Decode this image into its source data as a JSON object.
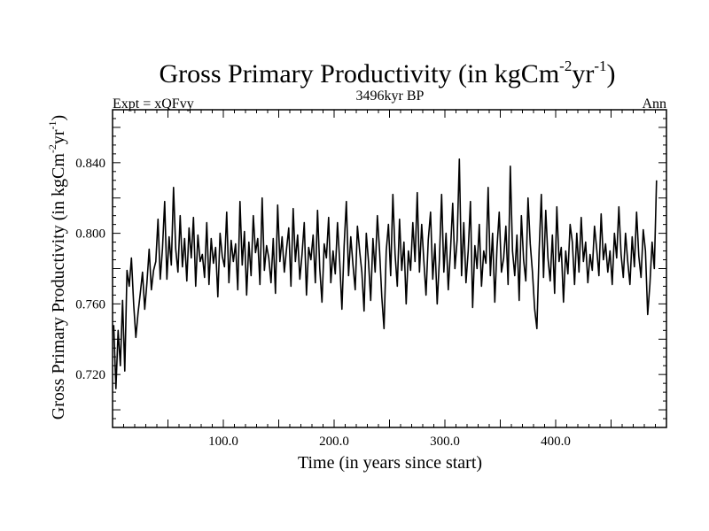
{
  "chart_data": {
    "type": "line",
    "title": {
      "main": "Gross Primary Productivity (in kgCm",
      "sup1": "-2",
      "mid": "yr",
      "sup2": "-1",
      "end": ")"
    },
    "subtitle_left": "Expt = xQFvy",
    "subtitle_center": "3496kyr BP",
    "subtitle_right": "Ann",
    "xlabel": "Time (in years since start)",
    "ylabel": {
      "main": "Gross Primary Productivity (in kgCm",
      "sup1": "-2",
      "mid": "yr",
      "sup2": "-1",
      "end": ")"
    },
    "xlim": [
      0,
      500
    ],
    "ylim": [
      0.69,
      0.87
    ],
    "x_ticks": [
      100,
      200,
      300,
      400
    ],
    "x_tick_labels": [
      "100.0",
      "200.0",
      "300.0",
      "400.0"
    ],
    "y_ticks": [
      0.72,
      0.76,
      0.8,
      0.84
    ],
    "y_tick_labels": [
      "0.720",
      "0.760",
      "0.800",
      "0.840"
    ],
    "series": [
      {
        "name": "Gross Primary Productivity",
        "x_start": 1,
        "x_step": 2,
        "values": [
          0.748,
          0.712,
          0.745,
          0.725,
          0.762,
          0.722,
          0.779,
          0.77,
          0.786,
          0.76,
          0.741,
          0.755,
          0.766,
          0.778,
          0.757,
          0.772,
          0.791,
          0.768,
          0.779,
          0.784,
          0.808,
          0.774,
          0.791,
          0.818,
          0.774,
          0.798,
          0.782,
          0.826,
          0.791,
          0.778,
          0.81,
          0.781,
          0.797,
          0.773,
          0.803,
          0.786,
          0.809,
          0.77,
          0.799,
          0.784,
          0.788,
          0.775,
          0.806,
          0.771,
          0.797,
          0.783,
          0.792,
          0.764,
          0.8,
          0.787,
          0.781,
          0.812,
          0.772,
          0.796,
          0.784,
          0.794,
          0.768,
          0.818,
          0.782,
          0.801,
          0.765,
          0.795,
          0.776,
          0.81,
          0.789,
          0.797,
          0.771,
          0.82,
          0.779,
          0.793,
          0.786,
          0.772,
          0.797,
          0.766,
          0.816,
          0.784,
          0.798,
          0.778,
          0.791,
          0.803,
          0.77,
          0.814,
          0.784,
          0.799,
          0.774,
          0.788,
          0.806,
          0.765,
          0.792,
          0.785,
          0.799,
          0.772,
          0.813,
          0.78,
          0.761,
          0.794,
          0.786,
          0.809,
          0.772,
          0.79,
          0.777,
          0.806,
          0.784,
          0.757,
          0.793,
          0.818,
          0.776,
          0.798,
          0.782,
          0.768,
          0.804,
          0.79,
          0.778,
          0.756,
          0.8,
          0.784,
          0.762,
          0.797,
          0.778,
          0.81,
          0.79,
          0.764,
          0.746,
          0.79,
          0.805,
          0.776,
          0.822,
          0.788,
          0.77,
          0.808,
          0.779,
          0.795,
          0.76,
          0.79,
          0.779,
          0.806,
          0.784,
          0.823,
          0.778,
          0.805,
          0.784,
          0.765,
          0.796,
          0.812,
          0.774,
          0.794,
          0.76,
          0.785,
          0.822,
          0.778,
          0.8,
          0.768,
          0.79,
          0.817,
          0.78,
          0.796,
          0.842,
          0.776,
          0.806,
          0.772,
          0.79,
          0.818,
          0.758,
          0.793,
          0.78,
          0.805,
          0.77,
          0.79,
          0.783,
          0.826,
          0.776,
          0.8,
          0.761,
          0.792,
          0.812,
          0.778,
          0.786,
          0.804,
          0.771,
          0.838,
          0.79,
          0.776,
          0.799,
          0.762,
          0.81,
          0.785,
          0.773,
          0.82,
          0.794,
          0.778,
          0.757,
          0.746,
          0.79,
          0.822,
          0.775,
          0.813,
          0.786,
          0.773,
          0.799,
          0.766,
          0.815,
          0.784,
          0.792,
          0.761,
          0.79,
          0.777,
          0.805,
          0.795,
          0.771,
          0.8,
          0.778,
          0.809,
          0.784,
          0.795,
          0.772,
          0.788,
          0.779,
          0.804,
          0.791,
          0.776,
          0.811,
          0.785,
          0.794,
          0.778,
          0.79,
          0.771,
          0.8,
          0.786,
          0.815,
          0.788,
          0.775,
          0.8,
          0.784,
          0.771,
          0.798,
          0.781,
          0.812,
          0.787,
          0.775,
          0.802,
          0.79,
          0.754,
          0.771,
          0.795,
          0.78,
          0.83
        ]
      }
    ]
  }
}
